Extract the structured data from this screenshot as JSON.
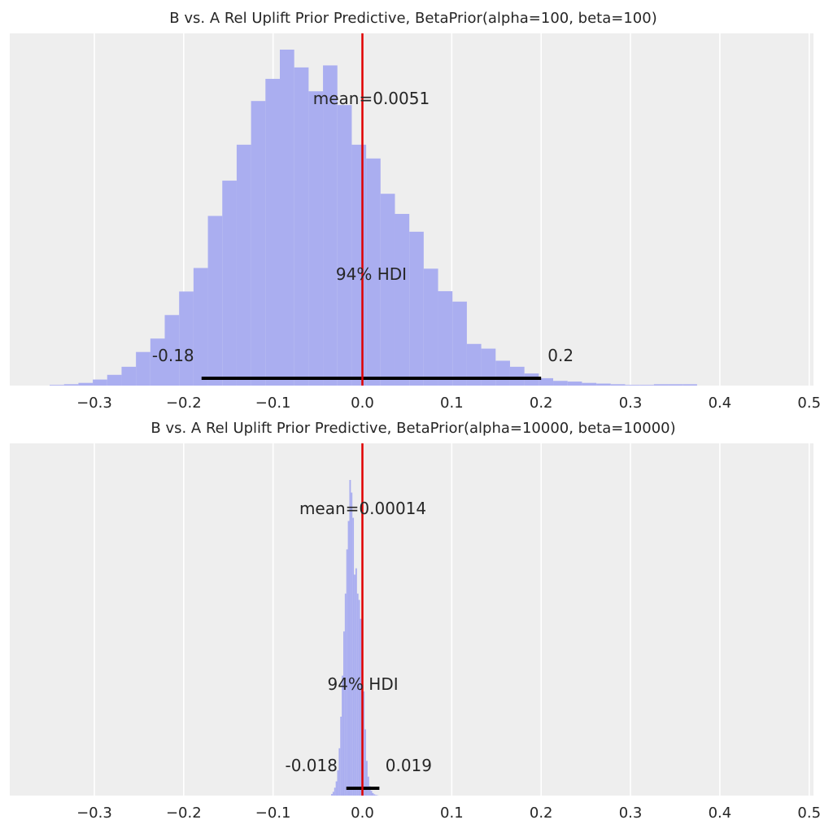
{
  "chart_data": [
    {
      "type": "histogram",
      "title": "B vs. A Rel Uplift Prior Predictive, BetaPrior(alpha=100, beta=100)",
      "xlim": [
        -0.39,
        0.5
      ],
      "xticks": [
        -0.3,
        -0.2,
        -0.1,
        0.0,
        0.1,
        0.2,
        0.3,
        0.4,
        0.5
      ],
      "xtick_labels": [
        "−0.3",
        "−0.2",
        "−0.1",
        "0.0",
        "0.1",
        "0.2",
        "0.3",
        "0.4",
        "0.5"
      ],
      "grid": true,
      "yticks_visible": false,
      "bar_color": "#aaaef0",
      "reference_line": {
        "x": 0.0,
        "color": "#e00000"
      },
      "bins": {
        "x0": -0.35,
        "width": 0.0161,
        "heights": [
          0.002,
          0.004,
          0.008,
          0.018,
          0.032,
          0.056,
          0.1,
          0.14,
          0.21,
          0.28,
          0.35,
          0.505,
          0.61,
          0.717,
          0.847,
          0.913,
          1.0,
          0.947,
          0.876,
          0.953,
          0.835,
          0.717,
          0.676,
          0.571,
          0.511,
          0.458,
          0.348,
          0.281,
          0.25,
          0.124,
          0.11,
          0.074,
          0.056,
          0.036,
          0.022,
          0.014,
          0.012,
          0.008,
          0.006,
          0.004,
          0.002,
          0.002,
          0.004,
          0.004,
          0.004
        ]
      },
      "mean_label": "mean=0.0051",
      "hdi_label": "94% HDI",
      "hdi": [
        -0.18,
        0.2
      ],
      "hdi_low_label": "-0.18",
      "hdi_high_label": "0.2"
    },
    {
      "type": "histogram",
      "title": "B vs. A Rel Uplift Prior Predictive, BetaPrior(alpha=10000, beta=10000)",
      "xlim": [
        -0.39,
        0.5
      ],
      "xticks": [
        -0.3,
        -0.2,
        -0.1,
        0.0,
        0.1,
        0.2,
        0.3,
        0.4,
        0.5
      ],
      "xtick_labels": [
        "−0.3",
        "−0.2",
        "−0.1",
        "0.0",
        "0.1",
        "0.2",
        "0.3",
        "0.4",
        "0.5"
      ],
      "grid": true,
      "yticks_visible": false,
      "bar_color": "#aaaef0",
      "reference_line": {
        "x": 0.0,
        "color": "#e00000"
      },
      "bins": {
        "x0": -0.035,
        "width": 0.0017,
        "heights": [
          0.005,
          0.012,
          0.025,
          0.045,
          0.08,
          0.15,
          0.25,
          0.38,
          0.52,
          0.64,
          0.78,
          0.87,
          1.0,
          0.96,
          0.88,
          0.7,
          0.72,
          0.64,
          0.62,
          0.56,
          0.45,
          0.33,
          0.21,
          0.11,
          0.06,
          0.03,
          0.015,
          0.008,
          0.004,
          0.002,
          0.001
        ]
      },
      "mean_label": "mean=0.00014",
      "hdi_label": "94% HDI",
      "hdi": [
        -0.018,
        0.019
      ],
      "hdi_low_label": "-0.018",
      "hdi_high_label": "0.019"
    }
  ]
}
